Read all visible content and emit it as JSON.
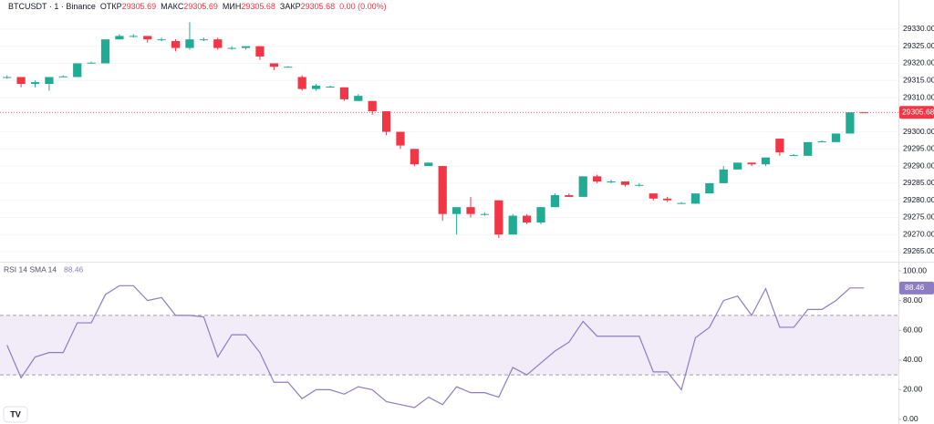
{
  "chart_data": [
    {
      "type": "candlestick",
      "title": "BTCUSDT · 1 · Binance",
      "ohlc_labels": [
        "ОТКР",
        "МАКС",
        "МИН",
        "ЗАКР"
      ],
      "change": "0.00 (0.00%)",
      "categories": [
        null,
        null,
        null,
        null,
        null,
        null,
        null,
        null,
        null,
        null,
        null,
        null,
        null,
        null,
        null,
        null,
        null,
        null,
        null,
        null,
        null,
        null,
        null,
        null,
        null,
        null,
        null,
        null,
        null,
        null,
        null,
        null,
        null,
        null,
        null,
        null,
        null,
        null,
        null,
        null,
        null,
        null,
        null,
        null,
        null,
        null,
        null,
        null,
        null,
        null,
        null,
        null,
        null,
        null,
        null,
        null,
        null,
        null,
        null,
        null,
        null,
        null
      ],
      "open": [
        29316,
        29316,
        29314,
        29314,
        29316,
        29316,
        29320,
        29320,
        29327,
        29328,
        29328,
        29327,
        29326.5,
        29324.5,
        29327,
        29327,
        29324.5,
        29324.5,
        29325,
        29320,
        29319,
        29316,
        29312.5,
        29313,
        29313,
        29309,
        29309,
        29306,
        29300,
        29295,
        29290,
        29290,
        29276,
        29278,
        29276,
        29280,
        29270,
        29275.5,
        29273.5,
        29278,
        29281.5,
        29281,
        29287,
        29285.5,
        29285.5,
        29284.5,
        29282,
        29280.5,
        29279,
        29279,
        29282,
        29285,
        29289,
        29291,
        29290.5,
        29298,
        29293,
        29293,
        29297,
        29297,
        29299.5,
        29305.69
      ],
      "high": [
        29316.5,
        29316,
        29315,
        29316,
        29316.5,
        29320,
        29320.5,
        29327,
        29328.5,
        29328.5,
        29328,
        29327.5,
        29327,
        29332,
        29327.5,
        29327.5,
        29325,
        29325,
        29325,
        29320,
        29319.2,
        29316.5,
        29314,
        29313.5,
        29313,
        29311,
        29309,
        29306,
        29300,
        29295,
        29291,
        29290,
        29278,
        29281,
        29276.5,
        29280,
        29276,
        29276,
        29278,
        29282,
        29282,
        29287,
        29287.5,
        29286,
        29285.5,
        29285,
        29282,
        29281,
        29279.5,
        29282,
        29285,
        29290,
        29291,
        29291,
        29292.5,
        29298,
        29293.5,
        29297,
        29297.5,
        29299.5,
        29305.69,
        29305.69
      ],
      "low": [
        29315.5,
        29313,
        29313,
        29312,
        29316,
        29316,
        29320,
        29320,
        29327,
        29327.5,
        29326,
        29326.5,
        29323.5,
        29324,
        29326.5,
        29324,
        29324,
        29324,
        29321,
        29318,
        29318.8,
        29312,
        29312,
        29313,
        29309,
        29309,
        29305,
        29299,
        29295,
        29290,
        29290,
        29274,
        29270,
        29275,
        29275.5,
        29269,
        29270,
        29273,
        29273,
        29278,
        29281,
        29281,
        29285,
        29285,
        29284,
        29284,
        29280,
        29279.5,
        29279,
        29279,
        29282,
        29285,
        29289,
        29290,
        29290,
        29293,
        29293,
        29293,
        29297,
        29297,
        29299.5,
        29305.68
      ],
      "close": [
        29316,
        29314,
        29314.5,
        29316,
        29316.2,
        29320,
        29320.2,
        29327,
        29328,
        29328,
        29327,
        29327,
        29324.5,
        29327,
        29327,
        29324.5,
        29324.5,
        29325,
        29322,
        29319,
        29319,
        29312.5,
        29313.5,
        29313.2,
        29309.5,
        29310.5,
        29306,
        29300,
        29296,
        29290.5,
        29291,
        29276,
        29278,
        29276,
        29276,
        29270,
        29275.5,
        29273.5,
        29278,
        29281.5,
        29281,
        29287,
        29285.5,
        29285.5,
        29284.5,
        29284.5,
        29280.5,
        29280,
        29279.2,
        29282,
        29285,
        29289,
        29291,
        29290.5,
        29292.5,
        29294,
        29293.2,
        29297,
        29297.2,
        29299.5,
        29305.68,
        29305.68
      ],
      "up_color": "#22ab94",
      "down_color": "#f23645",
      "ylim": [
        29262.6,
        29338.5
      ],
      "yticks": [
        {
          "value": 29265,
          "label": "29265.00"
        },
        {
          "value": 29270,
          "label": "29270.00"
        },
        {
          "value": 29275,
          "label": "29275.00"
        },
        {
          "value": 29280,
          "label": "29280.00"
        },
        {
          "value": 29285,
          "label": "29285.00"
        },
        {
          "value": 29290,
          "label": "29290.00"
        },
        {
          "value": 29295,
          "label": "29295.00"
        },
        {
          "value": 29300,
          "label": "29300.00"
        },
        {
          "value": 29305,
          "label": "29305.00"
        },
        {
          "value": 29310,
          "label": "29310.00"
        },
        {
          "value": 29315,
          "label": "29315.00"
        },
        {
          "value": 29320,
          "label": "29320.00"
        },
        {
          "value": 29325,
          "label": "29325.00"
        },
        {
          "value": 29330,
          "label": "29330.00"
        }
      ]
    },
    {
      "type": "line",
      "title": "RSI 14 SMA 14",
      "categories": [
        null,
        null,
        null,
        null,
        null,
        null,
        null,
        null,
        null,
        null,
        null,
        null,
        null,
        null,
        null,
        null,
        null,
        null,
        null,
        null,
        null,
        null,
        null,
        null,
        null,
        null,
        null,
        null,
        null,
        null,
        null,
        null,
        null,
        null,
        null,
        null,
        null,
        null,
        null,
        null,
        null,
        null,
        null,
        null,
        null,
        null,
        null,
        null,
        null,
        null,
        null,
        null,
        null,
        null,
        null,
        null,
        null,
        null,
        null,
        null,
        null,
        null
      ],
      "values": [
        50,
        28,
        42,
        45,
        45,
        65,
        65,
        84,
        90,
        90,
        80,
        82,
        70,
        70,
        69,
        42,
        57,
        57,
        45,
        25,
        25,
        14,
        20,
        20,
        17,
        22,
        20,
        12,
        10,
        8,
        15,
        10,
        22,
        18,
        18,
        15,
        35,
        30,
        38,
        46,
        52,
        66,
        56,
        56,
        56,
        56,
        32,
        32,
        20,
        55,
        62,
        80,
        83,
        70,
        88,
        62,
        62,
        74,
        74,
        80,
        88.46,
        88.46
      ],
      "color": "#8e7cc3",
      "band": [
        30,
        70
      ],
      "band_color": "#ede7f6",
      "ylim": [
        -3.07,
        104.3
      ],
      "yticks": [
        {
          "value": 0,
          "label": "0.00"
        },
        {
          "value": 20,
          "label": "20.00"
        },
        {
          "value": 40,
          "label": "40.00"
        },
        {
          "value": 60,
          "label": "60.00"
        },
        {
          "value": 80,
          "label": "80.00"
        },
        {
          "value": 100,
          "label": "100.00"
        }
      ]
    }
  ]
}
